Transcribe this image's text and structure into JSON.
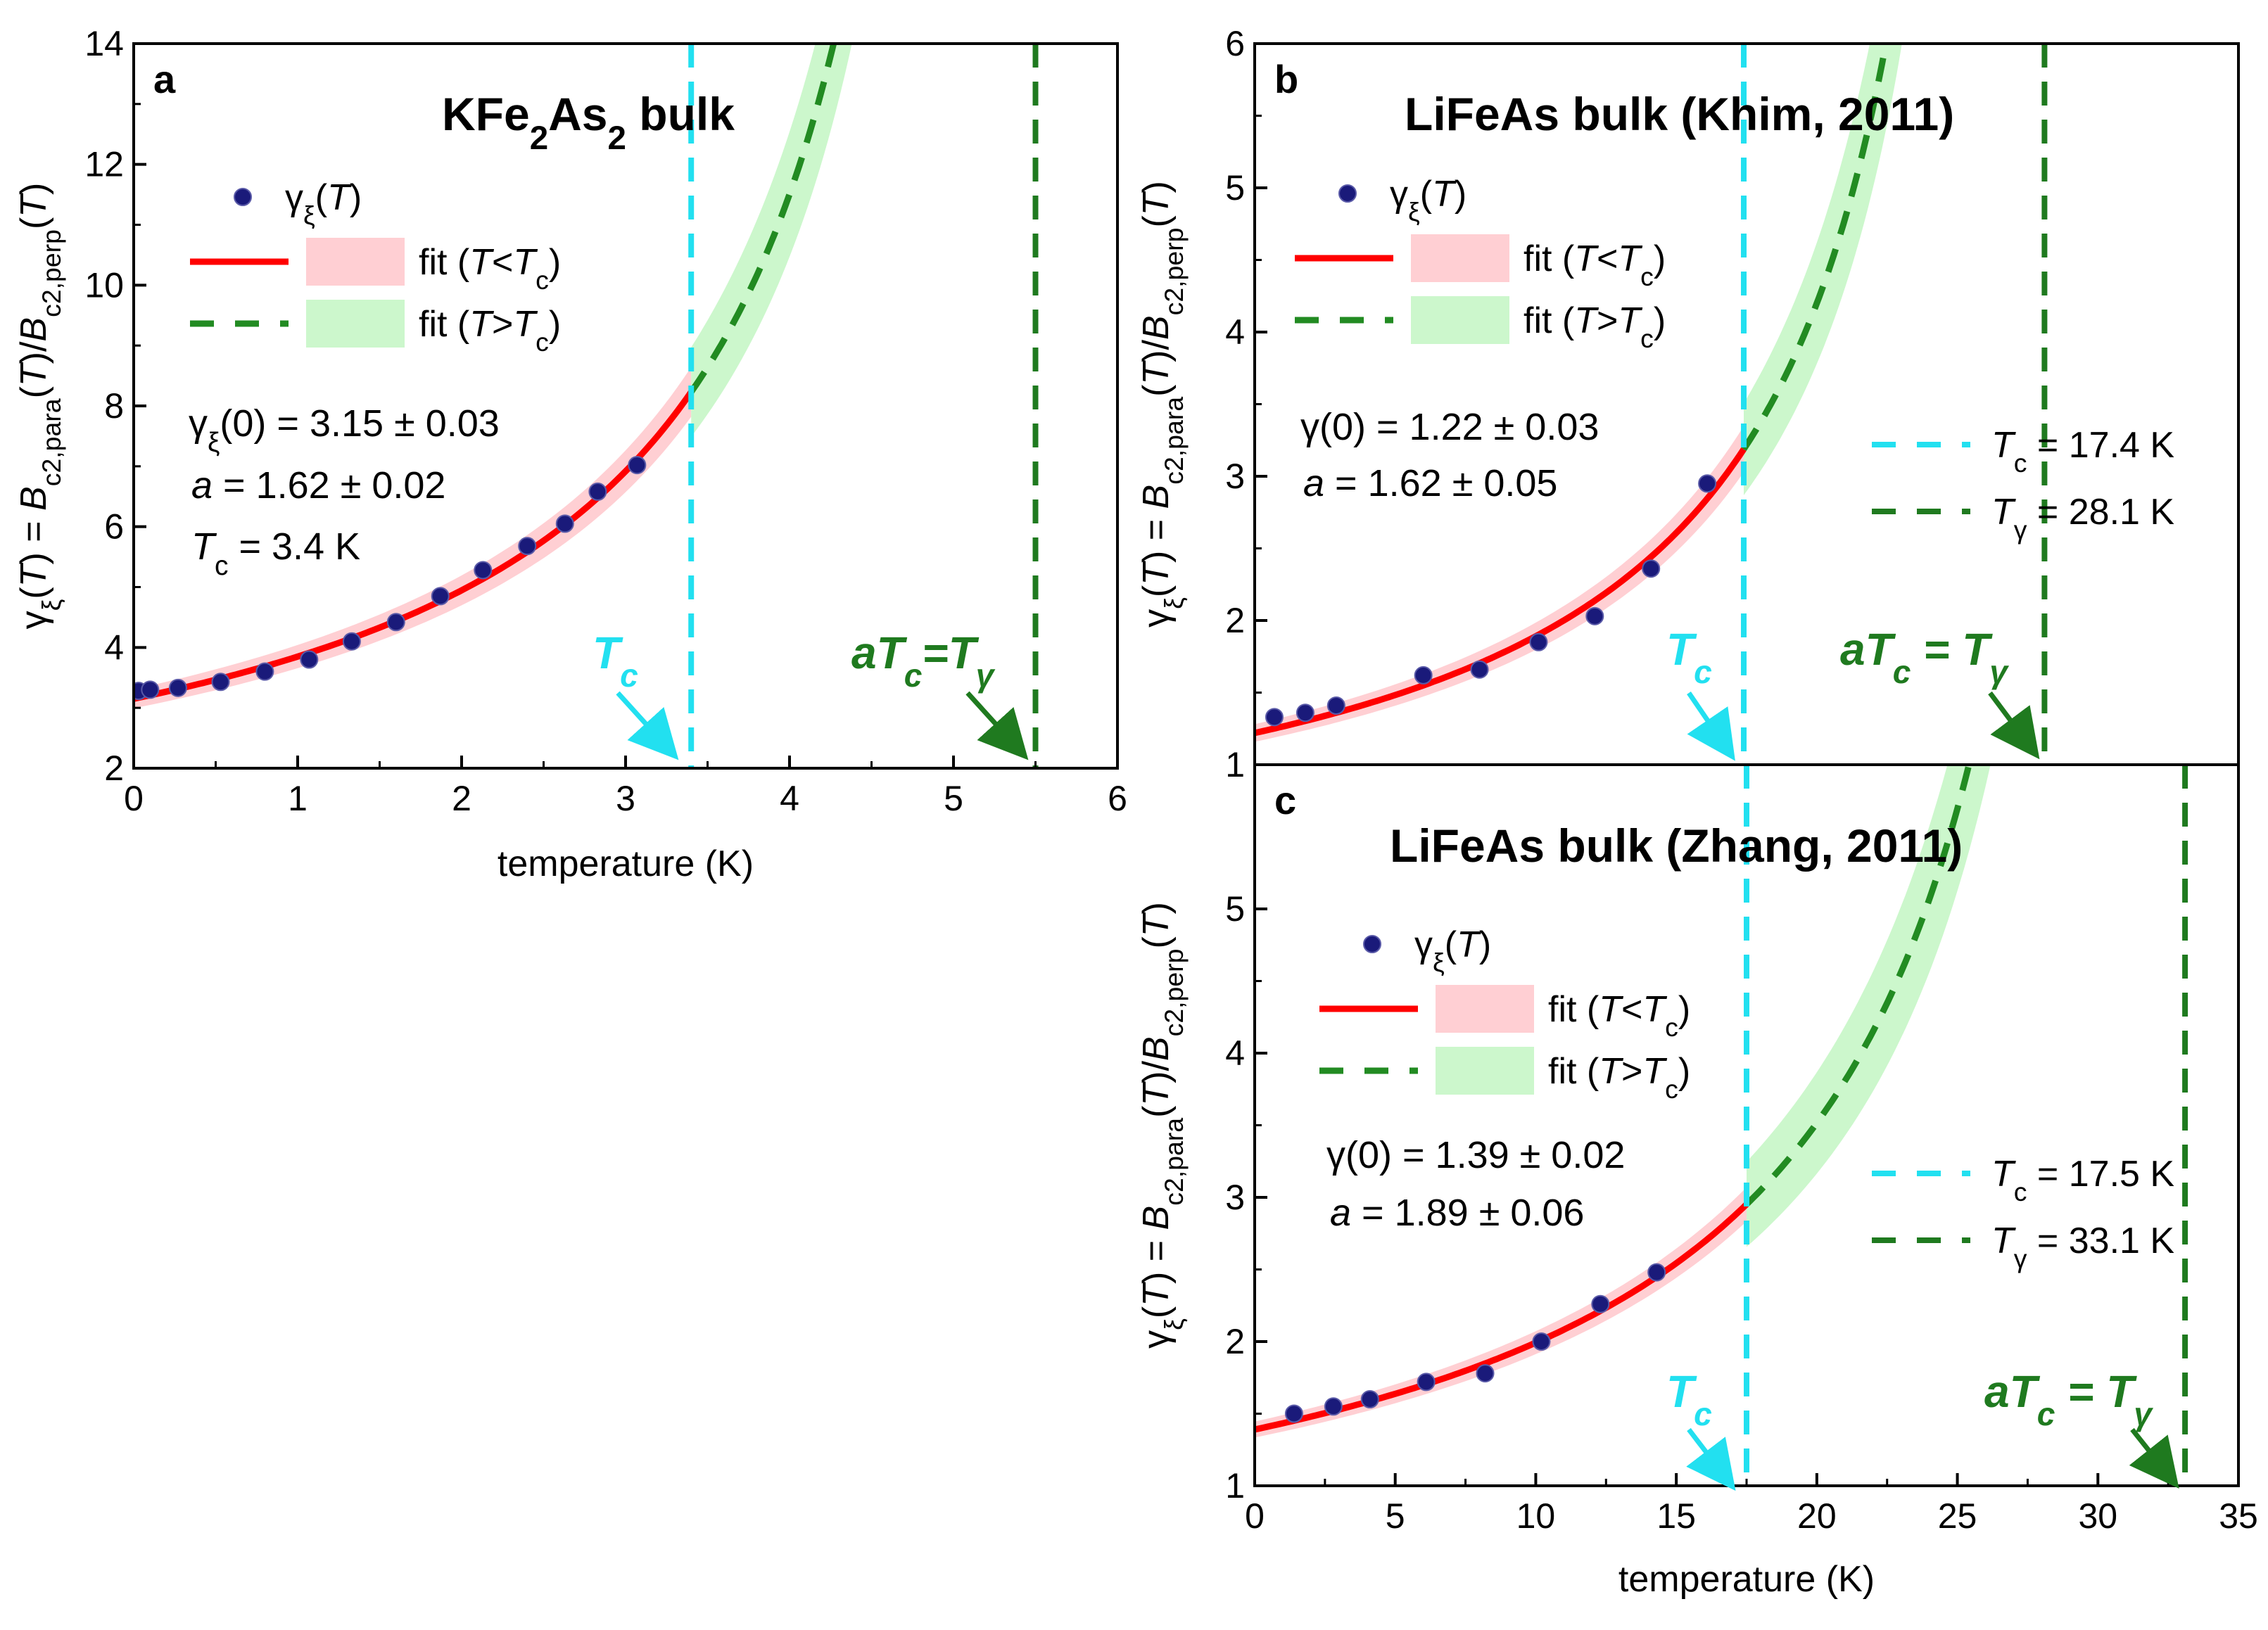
{
  "colors": {
    "fit_below": "#ff0000",
    "band_below": "#ffcfd3",
    "fit_above": "#228b22",
    "band_above": "#ccf7cc",
    "tc_line": "#22e0f0",
    "tgamma_line": "#1f7a1f",
    "points": "#1a1a7a",
    "axis": "#000000"
  },
  "chart_data": [
    {
      "panel": "a",
      "type": "scatter",
      "title": "KFe2As2 bulk",
      "title_parts": [
        "KFe",
        "2",
        "As",
        "2",
        " bulk"
      ],
      "xlabel": "temperature (K)",
      "ylabel": "γξ(T) = Bc2,para(T)/Bc2,perp(T)",
      "xlim": [
        0,
        6
      ],
      "ylim": [
        2,
        14
      ],
      "xticks": [
        0,
        1,
        2,
        3,
        4,
        5,
        6
      ],
      "yticks": [
        2,
        4,
        6,
        8,
        10,
        12,
        14
      ],
      "series": [
        {
          "name": "γξ(T)",
          "x": [
            0.03,
            0.1,
            0.27,
            0.53,
            0.8,
            1.07,
            1.33,
            1.6,
            1.87,
            2.13,
            2.4,
            2.63,
            2.83,
            3.07
          ],
          "y": [
            3.28,
            3.3,
            3.33,
            3.43,
            3.6,
            3.8,
            4.1,
            4.42,
            4.85,
            5.28,
            5.68,
            6.05,
            6.58,
            7.02
          ]
        }
      ],
      "fit": {
        "gamma0": 3.15,
        "a": 1.62,
        "Tc": 3.4,
        "band_below": 0.05,
        "band_above": 0.09
      },
      "Tc": 3.4,
      "Tgamma": 5.5,
      "legend": {
        "points": "γξ(T)",
        "fit_below": "fit (T<Tc)",
        "fit_above": "fit (T>Tc)"
      },
      "params": [
        "γξ(0) = 3.15 ± 0.03",
        "a = 1.62 ± 0.02",
        "Tc = 3.4 K"
      ],
      "annotations": {
        "tc_label": "Tc",
        "tgamma_label": "aTc=Tγ"
      }
    },
    {
      "panel": "b",
      "type": "scatter",
      "title": "LiFeAs bulk (Khim, 2011)",
      "xlabel": "",
      "ylabel": "γξ(T) = Bc2,para(T)/Bc2,perp(T)",
      "xlim": [
        0,
        35
      ],
      "ylim": [
        1,
        6
      ],
      "xticks": [],
      "yticks": [
        1,
        2,
        3,
        4,
        5,
        6
      ],
      "series": [
        {
          "name": "γξ(T)",
          "x": [
            0.7,
            1.8,
            2.9,
            6.0,
            8.0,
            10.1,
            12.1,
            14.1,
            16.1
          ],
          "y": [
            1.33,
            1.36,
            1.41,
            1.62,
            1.66,
            1.85,
            2.03,
            2.36,
            2.95
          ]
        }
      ],
      "fit": {
        "gamma0": 1.22,
        "a": 1.62,
        "Tc": 17.4,
        "band_below": 0.05,
        "band_above": 0.1
      },
      "Tc": 17.4,
      "Tgamma": 28.1,
      "legend": {
        "points": "γξ(T)",
        "fit_below": "fit (T<Tc)",
        "fit_above": "fit (T>Tc)",
        "tc_line": "Tc = 17.4 K",
        "tgamma_line": "Tγ = 28.1 K"
      },
      "params": [
        "γ(0) = 1.22 ± 0.03",
        "a = 1.62 ± 0.05"
      ],
      "annotations": {
        "tc_label": "Tc",
        "tgamma_label": "aTc = Tγ"
      }
    },
    {
      "panel": "c",
      "type": "scatter",
      "title": "LiFeAs bulk (Zhang, 2011)",
      "xlabel": "temperature (K)",
      "ylabel": "γξ(T) = Bc2,para(T)/Bc2,perp(T)",
      "xlim": [
        0,
        35
      ],
      "ylim": [
        1,
        6
      ],
      "xticks": [
        0,
        5,
        10,
        15,
        20,
        25,
        30,
        35
      ],
      "yticks": [
        1,
        2,
        3,
        4,
        5
      ],
      "series": [
        {
          "name": "γξ(T)",
          "x": [
            1.4,
            2.8,
            4.1,
            6.1,
            8.2,
            10.2,
            12.3,
            14.3
          ],
          "y": [
            1.5,
            1.55,
            1.6,
            1.72,
            1.78,
            2.0,
            2.26,
            2.48
          ]
        }
      ],
      "fit": {
        "gamma0": 1.39,
        "a": 1.89,
        "Tc": 17.5,
        "band_below": 0.04,
        "band_above": 0.1
      },
      "Tc": 17.5,
      "Tgamma": 33.1,
      "legend": {
        "points": "γξ(T)",
        "fit_below": "fit (T<Tc)",
        "fit_above": "fit (T>Tc)",
        "tc_line": "Tc = 17.5 K",
        "tgamma_line": "Tγ = 33.1 K"
      },
      "params": [
        "γ(0) = 1.39 ± 0.02",
        "a = 1.89 ± 0.06"
      ],
      "annotations": {
        "tc_label": "Tc",
        "tgamma_label": "aTc = Tγ"
      }
    }
  ]
}
